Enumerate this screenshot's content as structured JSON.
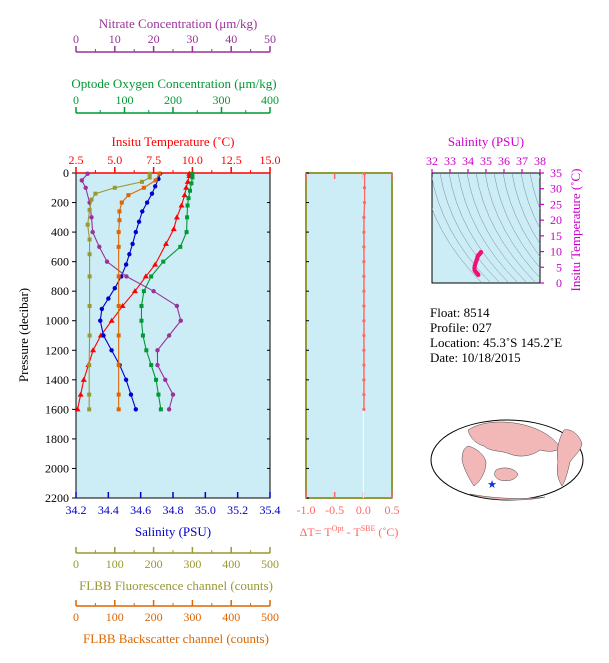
{
  "colors": {
    "nitrate": "#993399",
    "oxygen": "#009933",
    "temperature": "#ff0000",
    "salinity": "#0000cc",
    "fluorescence": "#999933",
    "backscatter": "#dd6600",
    "delta_t": "#ff6666",
    "ts_axis": "#cc00cc",
    "panel_bg": "#ccecf6"
  },
  "float_info": {
    "float": "Float:  8514",
    "profile": "Profile:  027",
    "location": "Location:  45.3˚S  145.2˚E",
    "date": "Date:  10/18/2015"
  },
  "chart_data": [
    {
      "type": "line",
      "panel": "main-profile",
      "ylabel": "Pressure (decibar)",
      "ylim": [
        2200,
        0
      ],
      "yticks": [
        "0",
        "200",
        "400",
        "600",
        "800",
        "1000",
        "1200",
        "1400",
        "1600",
        "1800",
        "2000",
        "2200"
      ],
      "axes": {
        "nitrate": {
          "label": "Nitrate Concentration (μm/kg)",
          "range": [
            0,
            50
          ],
          "ticks": [
            "0",
            "10",
            "20",
            "30",
            "40",
            "50"
          ]
        },
        "oxygen": {
          "label": "Optode Oxygen Concentration (μm/kg)",
          "range": [
            0,
            400
          ],
          "ticks": [
            "0",
            "100",
            "200",
            "300",
            "400"
          ]
        },
        "temperature": {
          "label": "Insitu Temperature (˚C)",
          "range": [
            2.5,
            15.0
          ],
          "ticks": [
            "2.5",
            "5.0",
            "7.5",
            "10.0",
            "12.5",
            "15.0"
          ]
        },
        "salinity": {
          "label": "Salinity (PSU)",
          "range": [
            34.2,
            35.4
          ],
          "ticks": [
            "34.2",
            "34.4",
            "34.6",
            "34.8",
            "35.0",
            "35.2",
            "35.4"
          ]
        },
        "fluorescence": {
          "label": "FLBB Fluorescence channel (counts)",
          "range": [
            0,
            500
          ],
          "ticks": [
            "0",
            "100",
            "200",
            "300",
            "400",
            "500"
          ]
        },
        "backscatter": {
          "label": "FLBB Backscatter channel (counts)",
          "range": [
            0,
            500
          ],
          "ticks": [
            "0",
            "100",
            "200",
            "300",
            "400",
            "500"
          ]
        }
      },
      "series": [
        {
          "key": "temperature",
          "points": [
            [
              9.8,
              5
            ],
            [
              9.8,
              20
            ],
            [
              9.7,
              60
            ],
            [
              9.6,
              100
            ],
            [
              9.5,
              150
            ],
            [
              9.3,
              220
            ],
            [
              9.0,
              300
            ],
            [
              8.8,
              380
            ],
            [
              8.3,
              480
            ],
            [
              7.6,
              620
            ],
            [
              7.0,
              700
            ],
            [
              6.3,
              800
            ],
            [
              5.5,
              900
            ],
            [
              4.8,
              1000
            ],
            [
              4.1,
              1100
            ],
            [
              3.6,
              1200
            ],
            [
              3.3,
              1300
            ],
            [
              3.0,
              1400
            ],
            [
              2.8,
              1500
            ],
            [
              2.6,
              1600
            ]
          ]
        },
        {
          "key": "salinity",
          "points": [
            [
              34.72,
              5
            ],
            [
              34.71,
              40
            ],
            [
              34.69,
              90
            ],
            [
              34.67,
              140
            ],
            [
              34.64,
              200
            ],
            [
              34.61,
              260
            ],
            [
              34.59,
              330
            ],
            [
              34.57,
              400
            ],
            [
              34.55,
              480
            ],
            [
              34.53,
              550
            ],
            [
              34.51,
              620
            ],
            [
              34.48,
              700
            ],
            [
              34.44,
              780
            ],
            [
              34.4,
              850
            ],
            [
              34.36,
              920
            ],
            [
              34.35,
              1000
            ],
            [
              34.37,
              1100
            ],
            [
              34.42,
              1200
            ],
            [
              34.47,
              1300
            ],
            [
              34.51,
              1400
            ],
            [
              34.54,
              1500
            ],
            [
              34.57,
              1600
            ]
          ]
        },
        {
          "key": "oxygen",
          "points": [
            [
              240,
              5
            ],
            [
              240,
              30
            ],
            [
              238,
              70
            ],
            [
              235,
              120
            ],
            [
              232,
              170
            ],
            [
              230,
              220
            ],
            [
              229,
              300
            ],
            [
              228,
              400
            ],
            [
              215,
              500
            ],
            [
              180,
              600
            ],
            [
              155,
              700
            ],
            [
              140,
              800
            ],
            [
              135,
              900
            ],
            [
              135,
              1000
            ],
            [
              138,
              1100
            ],
            [
              145,
              1200
            ],
            [
              155,
              1300
            ],
            [
              165,
              1400
            ],
            [
              170,
              1500
            ],
            [
              175,
              1600
            ]
          ]
        },
        {
          "key": "nitrate",
          "points": [
            [
              3,
              5
            ],
            [
              1.5,
              50
            ],
            [
              2.5,
              100
            ],
            [
              3.5,
              200
            ],
            [
              4,
              300
            ],
            [
              4.3,
              400
            ],
            [
              6,
              500
            ],
            [
              8,
              600
            ],
            [
              13,
              700
            ],
            [
              20,
              800
            ],
            [
              26,
              900
            ],
            [
              27,
              1000
            ],
            [
              24,
              1100
            ],
            [
              21,
              1200
            ],
            [
              21,
              1300
            ],
            [
              23,
              1400
            ],
            [
              25,
              1500
            ],
            [
              24,
              1600
            ]
          ]
        },
        {
          "key": "fluorescence",
          "points": [
            [
              190,
              5
            ],
            [
              190,
              30
            ],
            [
              170,
              60
            ],
            [
              100,
              100
            ],
            [
              50,
              140
            ],
            [
              40,
              180
            ],
            [
              35,
              250
            ],
            [
              30,
              350
            ],
            [
              35,
              450
            ],
            [
              35,
              550
            ],
            [
              35,
              700
            ],
            [
              35,
              900
            ],
            [
              35,
              1100
            ],
            [
              34,
              1300
            ],
            [
              34,
              1500
            ],
            [
              34,
              1600
            ]
          ]
        },
        {
          "key": "backscatter",
          "points": [
            [
              215,
              5
            ],
            [
              205,
              50
            ],
            [
              175,
              100
            ],
            [
              135,
              150
            ],
            [
              118,
              200
            ],
            [
              112,
              260
            ],
            [
              112,
              320
            ],
            [
              110,
              400
            ],
            [
              110,
              500
            ],
            [
              110,
              700
            ],
            [
              110,
              900
            ],
            [
              110,
              1100
            ],
            [
              110,
              1300
            ],
            [
              110,
              1500
            ],
            [
              110,
              1600
            ]
          ]
        }
      ]
    },
    {
      "type": "line",
      "panel": "delta-t",
      "xlabel": "ΔT= T^Opt - T^SBE (˚C)",
      "xlim": [
        -1.0,
        0.5
      ],
      "xticks": [
        "-1.0",
        "-0.5",
        "0.0",
        "0.5"
      ],
      "ylim": [
        2200,
        0
      ],
      "series": [
        {
          "key": "delta_t",
          "points": [
            [
              0.02,
              5
            ],
            [
              0.02,
              100
            ],
            [
              0.02,
              200
            ],
            [
              0.01,
              300
            ],
            [
              0.01,
              400
            ],
            [
              0.01,
              500
            ],
            [
              0.01,
              600
            ],
            [
              0.01,
              700
            ],
            [
              0.01,
              800
            ],
            [
              0.01,
              900
            ],
            [
              0.01,
              1000
            ],
            [
              0.01,
              1100
            ],
            [
              0.01,
              1200
            ],
            [
              0.01,
              1300
            ],
            [
              0.01,
              1400
            ],
            [
              0.01,
              1500
            ],
            [
              0.01,
              1600
            ]
          ]
        }
      ]
    },
    {
      "type": "scatter",
      "panel": "ts-diagram",
      "xlabel": "Salinity (PSU)",
      "ylabel": "Insitu Temperature (˚C)",
      "xlim": [
        32,
        38
      ],
      "ylim": [
        0,
        35
      ],
      "xticks": [
        "32",
        "33",
        "34",
        "35",
        "36",
        "37",
        "38"
      ],
      "yticks": [
        "0",
        "5",
        "10",
        "15",
        "20",
        "25",
        "30",
        "35"
      ],
      "points": [
        [
          34.72,
          9.8
        ],
        [
          34.7,
          9.6
        ],
        [
          34.66,
          9.3
        ],
        [
          34.61,
          9.0
        ],
        [
          34.57,
          8.8
        ],
        [
          34.53,
          8.3
        ],
        [
          34.5,
          7.6
        ],
        [
          34.46,
          7.0
        ],
        [
          34.42,
          6.3
        ],
        [
          34.38,
          5.5
        ],
        [
          34.36,
          4.8
        ],
        [
          34.37,
          4.1
        ],
        [
          34.42,
          3.6
        ],
        [
          34.47,
          3.3
        ],
        [
          34.51,
          3.0
        ],
        [
          34.54,
          2.8
        ],
        [
          34.57,
          2.6
        ]
      ]
    }
  ]
}
